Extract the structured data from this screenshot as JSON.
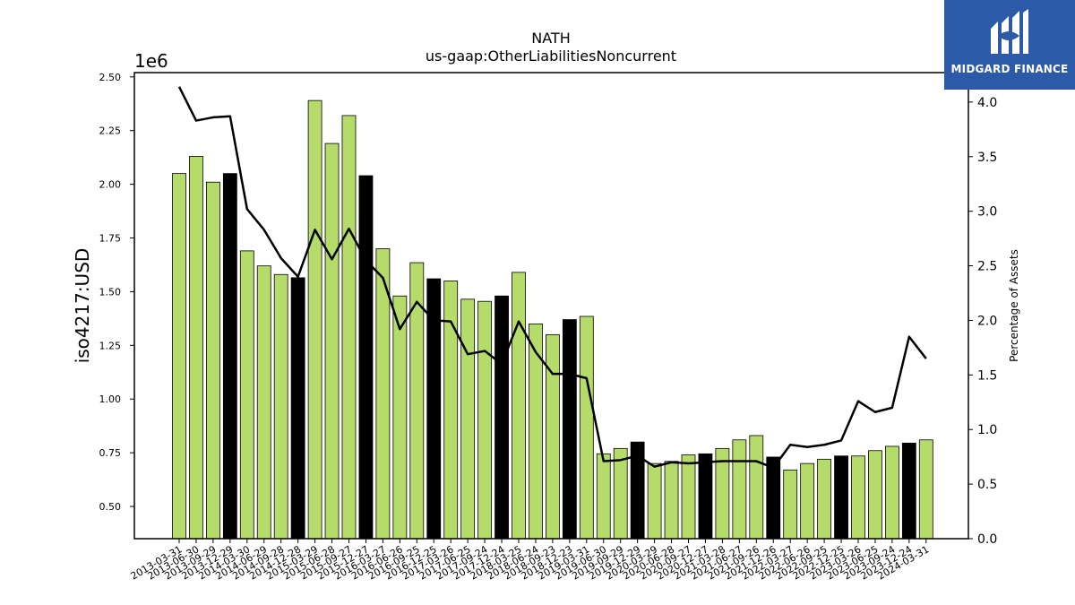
{
  "brand": {
    "name": "MIDGARD FINANCE",
    "color": "#2c5aa8",
    "icon": "midgard-logo-icon"
  },
  "chart_data": {
    "type": "bar",
    "title": "NATH",
    "subtitle": "us-gaap:OtherLiabilitiesNoncurrent",
    "ylabel": "iso4217:USD",
    "y_offset_label": "1e6",
    "y2label": "Percentage of Assets",
    "ylim": [
      0.35,
      2.52
    ],
    "y2lim": [
      0.0,
      4.27
    ],
    "yticks": [
      "0.50",
      "0.75",
      "1.00",
      "1.25",
      "1.50",
      "1.75",
      "2.00",
      "2.25",
      "2.50"
    ],
    "y2ticks": [
      "0.0",
      "0.5",
      "1.0",
      "1.5",
      "2.0",
      "2.5",
      "3.0",
      "3.5",
      "4.0"
    ],
    "grid": false,
    "colors": {
      "regular": "#b5dc6a",
      "highlight": "#000000",
      "line": "#000000"
    },
    "categories": [
      "2013-03-31",
      "2013-06-30",
      "2013-09-29",
      "2013-12-29",
      "2014-03-30",
      "2014-06-29",
      "2014-09-28",
      "2014-12-28",
      "2015-03-29",
      "2015-06-28",
      "2015-09-27",
      "2015-12-27",
      "2016-03-27",
      "2016-06-26",
      "2016-09-25",
      "2016-12-25",
      "2017-03-26",
      "2017-06-25",
      "2017-09-24",
      "2017-12-24",
      "2018-03-25",
      "2018-06-24",
      "2018-09-23",
      "2018-12-23",
      "2019-03-31",
      "2019-06-30",
      "2019-09-29",
      "2019-12-29",
      "2020-03-29",
      "2020-06-28",
      "2020-09-27",
      "2020-12-27",
      "2021-03-28",
      "2021-06-27",
      "2021-09-26",
      "2021-12-26",
      "2022-03-27",
      "2022-06-26",
      "2022-09-25",
      "2022-12-25",
      "2023-03-26",
      "2023-06-25",
      "2023-09-24",
      "2023-12-24",
      "2024-03-31"
    ],
    "series": [
      {
        "type": "bar",
        "values": [
          2.05,
          2.13,
          2.01,
          2.05,
          1.69,
          1.62,
          1.58,
          1.565,
          2.39,
          2.19,
          2.32,
          2.04,
          1.7,
          1.48,
          1.635,
          1.56,
          1.55,
          1.465,
          1.455,
          1.48,
          1.59,
          1.35,
          1.3,
          1.37,
          1.385,
          0.745,
          0.77,
          0.8,
          0.7,
          0.71,
          0.74,
          0.745,
          0.77,
          0.81,
          0.83,
          0.73,
          0.67,
          0.7,
          0.72,
          0.735,
          0.735,
          0.76,
          0.78,
          0.795,
          0.81
        ],
        "highlight": [
          false,
          false,
          false,
          true,
          false,
          false,
          false,
          true,
          false,
          false,
          false,
          true,
          false,
          false,
          false,
          true,
          false,
          false,
          false,
          true,
          false,
          false,
          false,
          true,
          false,
          false,
          false,
          true,
          false,
          false,
          false,
          true,
          false,
          false,
          false,
          true,
          false,
          false,
          false,
          true,
          false,
          false,
          false,
          true,
          false
        ]
      },
      {
        "type": "line",
        "axis": "right",
        "values": [
          4.14,
          3.83,
          3.86,
          3.87,
          3.02,
          2.83,
          2.57,
          2.4,
          2.83,
          2.56,
          2.84,
          2.55,
          2.39,
          1.92,
          2.17,
          2.0,
          1.99,
          1.69,
          1.72,
          1.6,
          1.99,
          1.71,
          1.51,
          1.51,
          1.47,
          0.71,
          0.72,
          0.76,
          0.66,
          0.7,
          0.69,
          0.7,
          0.71,
          0.71,
          0.71,
          0.65,
          0.86,
          0.84,
          0.86,
          0.9,
          1.26,
          1.16,
          1.2,
          1.85,
          1.65
        ]
      }
    ]
  }
}
